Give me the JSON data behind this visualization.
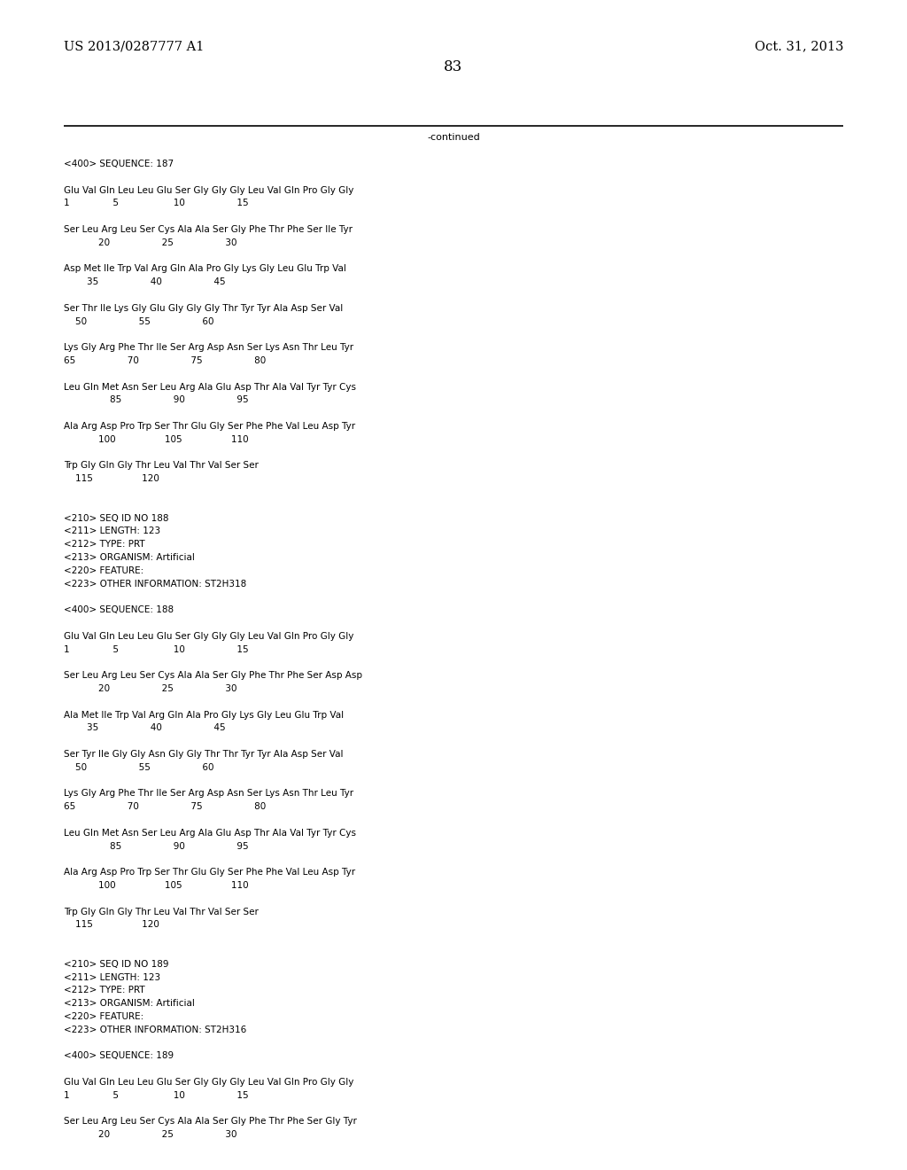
{
  "bg_color": "#ffffff",
  "header_left": "US 2013/0287777 A1",
  "header_right": "Oct. 31, 2013",
  "page_number": "83",
  "continued_text": "-continued",
  "content": [
    "<400> SEQUENCE: 187",
    "",
    "Glu Val Gln Leu Leu Glu Ser Gly Gly Gly Leu Val Gln Pro Gly Gly",
    "1               5                   10                  15",
    "",
    "Ser Leu Arg Leu Ser Cys Ala Ala Ser Gly Phe Thr Phe Ser Ile Tyr",
    "            20                  25                  30",
    "",
    "Asp Met Ile Trp Val Arg Gln Ala Pro Gly Lys Gly Leu Glu Trp Val",
    "        35                  40                  45",
    "",
    "Ser Thr Ile Lys Gly Glu Gly Gly Gly Thr Tyr Tyr Ala Asp Ser Val",
    "    50                  55                  60",
    "",
    "Lys Gly Arg Phe Thr Ile Ser Arg Asp Asn Ser Lys Asn Thr Leu Tyr",
    "65                  70                  75                  80",
    "",
    "Leu Gln Met Asn Ser Leu Arg Ala Glu Asp Thr Ala Val Tyr Tyr Cys",
    "                85                  90                  95",
    "",
    "Ala Arg Asp Pro Trp Ser Thr Glu Gly Ser Phe Phe Val Leu Asp Tyr",
    "            100                 105                 110",
    "",
    "Trp Gly Gln Gly Thr Leu Val Thr Val Ser Ser",
    "    115                 120",
    "",
    "",
    "<210> SEQ ID NO 188",
    "<211> LENGTH: 123",
    "<212> TYPE: PRT",
    "<213> ORGANISM: Artificial",
    "<220> FEATURE:",
    "<223> OTHER INFORMATION: ST2H318",
    "",
    "<400> SEQUENCE: 188",
    "",
    "Glu Val Gln Leu Leu Glu Ser Gly Gly Gly Leu Val Gln Pro Gly Gly",
    "1               5                   10                  15",
    "",
    "Ser Leu Arg Leu Ser Cys Ala Ala Ser Gly Phe Thr Phe Ser Asp Asp",
    "            20                  25                  30",
    "",
    "Ala Met Ile Trp Val Arg Gln Ala Pro Gly Lys Gly Leu Glu Trp Val",
    "        35                  40                  45",
    "",
    "Ser Tyr Ile Gly Gly Asn Gly Gly Thr Thr Tyr Tyr Ala Asp Ser Val",
    "    50                  55                  60",
    "",
    "Lys Gly Arg Phe Thr Ile Ser Arg Asp Asn Ser Lys Asn Thr Leu Tyr",
    "65                  70                  75                  80",
    "",
    "Leu Gln Met Asn Ser Leu Arg Ala Glu Asp Thr Ala Val Tyr Tyr Cys",
    "                85                  90                  95",
    "",
    "Ala Arg Asp Pro Trp Ser Thr Glu Gly Ser Phe Phe Val Leu Asp Tyr",
    "            100                 105                 110",
    "",
    "Trp Gly Gln Gly Thr Leu Val Thr Val Ser Ser",
    "    115                 120",
    "",
    "",
    "<210> SEQ ID NO 189",
    "<211> LENGTH: 123",
    "<212> TYPE: PRT",
    "<213> ORGANISM: Artificial",
    "<220> FEATURE:",
    "<223> OTHER INFORMATION: ST2H316",
    "",
    "<400> SEQUENCE: 189",
    "",
    "Glu Val Gln Leu Leu Glu Ser Gly Gly Gly Leu Val Gln Pro Gly Gly",
    "1               5                   10                  15",
    "",
    "Ser Leu Arg Leu Ser Cys Ala Ala Ser Gly Phe Thr Phe Ser Gly Tyr",
    "            20                  25                  30"
  ],
  "font_size": 7.5,
  "header_font_size": 10.5,
  "page_num_font_size": 12,
  "mono_font": "Courier New"
}
